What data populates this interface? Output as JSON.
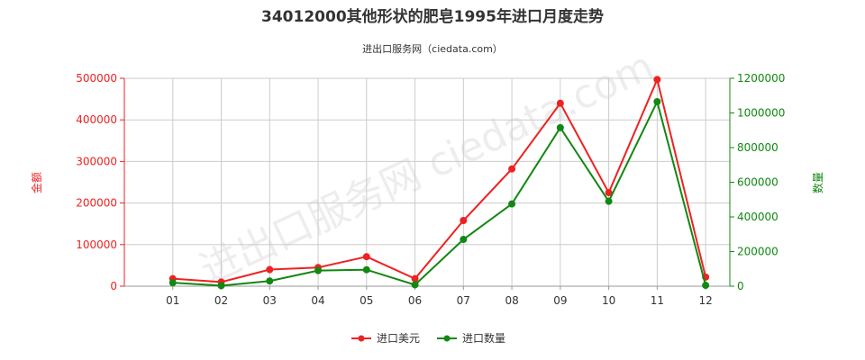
{
  "chart_data": {
    "type": "line",
    "title": "34012000其他形状的肥皂1995年进口月度走势",
    "subtitle": "进出口服务网（ciedata.com）",
    "watermark": "进出口服务网 ciedata.com",
    "categories": [
      "01",
      "02",
      "03",
      "04",
      "05",
      "06",
      "07",
      "08",
      "09",
      "10",
      "11",
      "12"
    ],
    "y_left": {
      "label": "金额",
      "range": [
        0,
        500000
      ],
      "ticks": [
        0,
        100000,
        200000,
        300000,
        400000,
        500000
      ],
      "color": "#ee2222"
    },
    "y_right": {
      "label": "数量",
      "range": [
        0,
        1200000
      ],
      "ticks": [
        0,
        200000,
        400000,
        600000,
        800000,
        1000000,
        1200000
      ],
      "color": "#118811"
    },
    "grid": true,
    "legend_position": "bottom-center",
    "series": [
      {
        "name": "进口美元",
        "axis": "left",
        "color": "#ee2222",
        "values": [
          18000,
          10000,
          40000,
          45000,
          71000,
          18000,
          158000,
          282000,
          440000,
          225000,
          497000,
          22000
        ]
      },
      {
        "name": "进口数量",
        "axis": "right",
        "color": "#118811",
        "values": [
          20000,
          3000,
          30000,
          90000,
          95000,
          8000,
          270000,
          475000,
          915000,
          490000,
          1065000,
          5000
        ]
      }
    ]
  }
}
